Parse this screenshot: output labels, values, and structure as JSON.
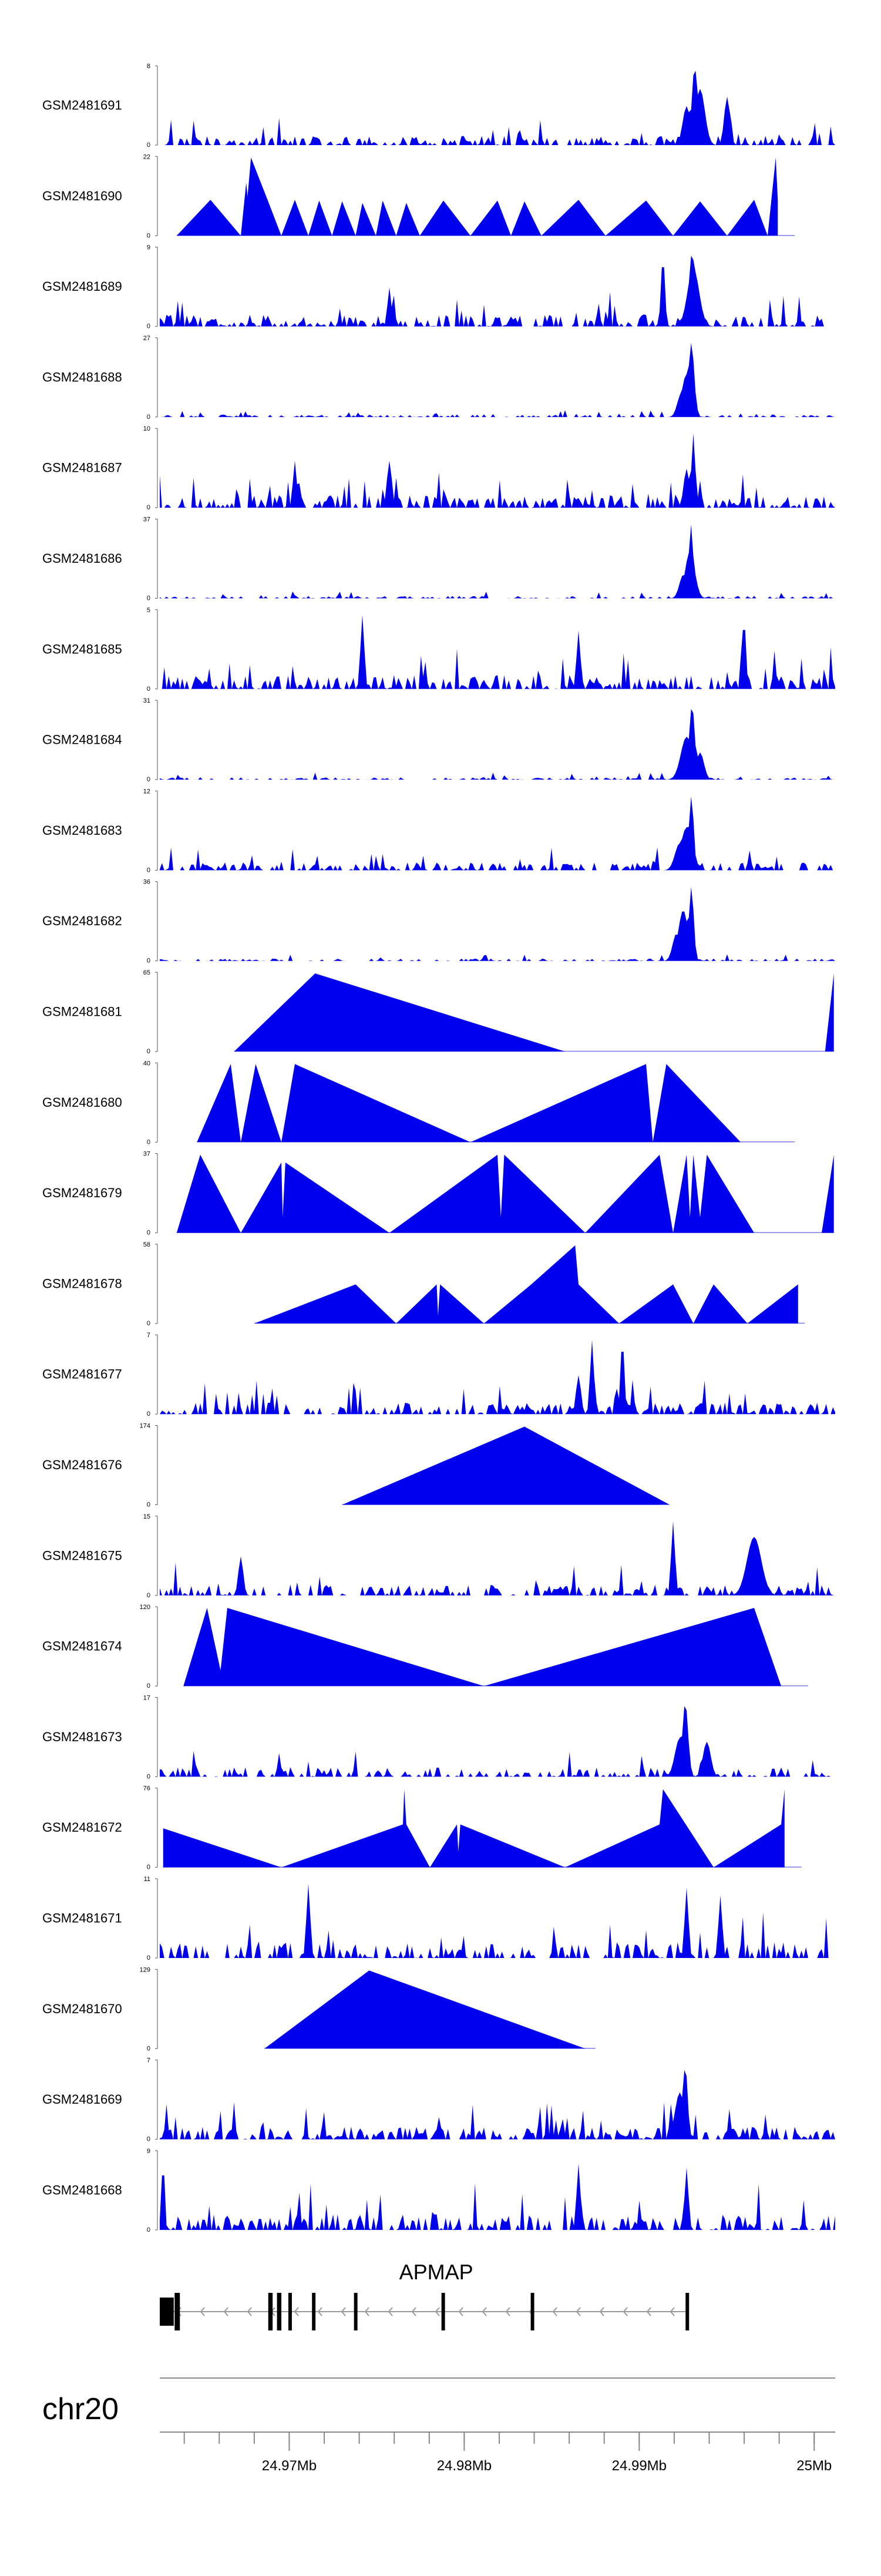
{
  "chart_data": {
    "type": "area",
    "title": "",
    "chromosome": "chr20",
    "region": [
      24.9626,
      25.0012
    ],
    "x_ticks": [
      {
        "value": 24.97,
        "label": "24.97Mb"
      },
      {
        "value": 24.98,
        "label": "24.98Mb"
      },
      {
        "value": 24.99,
        "label": "24.99Mb"
      },
      {
        "value": 25.0,
        "label": "25Mb"
      }
    ],
    "minor_tick_step": 0.002,
    "series": [
      {
        "name": "GSM2481691",
        "ymax": 8,
        "ytick_max": "8",
        "ytick_min": "0",
        "style": "noisy",
        "seed": 691,
        "density": 0.55,
        "base": 0.12,
        "peaks": [
          {
            "x": 0.792,
            "h": 1.0,
            "w": 0.006
          },
          {
            "x": 0.8,
            "h": 0.72,
            "w": 0.01
          },
          {
            "x": 0.78,
            "h": 0.5,
            "w": 0.008
          },
          {
            "x": 0.84,
            "h": 0.62,
            "w": 0.006
          }
        ]
      },
      {
        "name": "GSM2481690",
        "ymax": 22,
        "ytick_max": "22",
        "ytick_min": "0",
        "style": "sparse",
        "seed": 690,
        "ends": [
          0.025,
          0.94
        ],
        "knots": [
          [
            0.075,
            0.46
          ],
          [
            0.12,
            0.0
          ],
          [
            0.128,
            0.68
          ],
          [
            0.13,
            0.5
          ],
          [
            0.135,
            1.0
          ],
          [
            0.16,
            0.45
          ],
          [
            0.18,
            0.0
          ],
          [
            0.2,
            0.46
          ],
          [
            0.22,
            0.0
          ],
          [
            0.236,
            0.45
          ],
          [
            0.255,
            0.0
          ],
          [
            0.27,
            0.44
          ],
          [
            0.29,
            0.0
          ],
          [
            0.3,
            0.42
          ],
          [
            0.32,
            0.0
          ],
          [
            0.33,
            0.45
          ],
          [
            0.35,
            0.0
          ],
          [
            0.365,
            0.42
          ],
          [
            0.385,
            0.0
          ],
          [
            0.42,
            0.45
          ],
          [
            0.46,
            0.0
          ],
          [
            0.5,
            0.45
          ],
          [
            0.52,
            0.0
          ],
          [
            0.54,
            0.44
          ],
          [
            0.565,
            0.0
          ],
          [
            0.62,
            0.46
          ],
          [
            0.66,
            0.0
          ],
          [
            0.72,
            0.45
          ],
          [
            0.76,
            0.0
          ],
          [
            0.8,
            0.44
          ],
          [
            0.84,
            0.0
          ],
          [
            0.88,
            0.46
          ],
          [
            0.9,
            0.0
          ],
          [
            0.912,
            1.0
          ],
          [
            0.915,
            0.45
          ]
        ]
      },
      {
        "name": "GSM2481689",
        "ymax": 9,
        "ytick_max": "9",
        "ytick_min": "0",
        "style": "noisy",
        "seed": 689,
        "density": 0.6,
        "base": 0.15,
        "peaks": [
          {
            "x": 0.788,
            "h": 0.95,
            "w": 0.006
          },
          {
            "x": 0.79,
            "h": 0.75,
            "w": 0.012
          },
          {
            "x": 0.745,
            "h": 0.9,
            "w": 0.004
          },
          {
            "x": 0.34,
            "h": 0.5,
            "w": 0.004
          }
        ]
      },
      {
        "name": "GSM2481688",
        "ymax": 27,
        "ytick_max": "27",
        "ytick_min": "0",
        "style": "noisy",
        "seed": 688,
        "density": 0.45,
        "base": 0.03,
        "peaks": [
          {
            "x": 0.787,
            "h": 0.95,
            "w": 0.006
          },
          {
            "x": 0.78,
            "h": 0.55,
            "w": 0.01
          },
          {
            "x": 0.772,
            "h": 0.3,
            "w": 0.008
          }
        ]
      },
      {
        "name": "GSM2481687",
        "ymax": 10,
        "ytick_max": "10",
        "ytick_min": "0",
        "style": "noisy",
        "seed": 687,
        "density": 0.65,
        "base": 0.16,
        "peaks": [
          {
            "x": 0.79,
            "h": 0.95,
            "w": 0.004
          },
          {
            "x": 0.78,
            "h": 0.5,
            "w": 0.006
          },
          {
            "x": 0.2,
            "h": 0.6,
            "w": 0.004
          },
          {
            "x": 0.34,
            "h": 0.6,
            "w": 0.005
          }
        ]
      },
      {
        "name": "GSM2481686",
        "ymax": 37,
        "ytick_max": "37",
        "ytick_min": "0",
        "style": "noisy",
        "seed": 686,
        "density": 0.45,
        "base": 0.03,
        "peaks": [
          {
            "x": 0.787,
            "h": 0.95,
            "w": 0.004
          },
          {
            "x": 0.785,
            "h": 0.6,
            "w": 0.01
          },
          {
            "x": 0.775,
            "h": 0.3,
            "w": 0.008
          }
        ]
      },
      {
        "name": "GSM2481685",
        "ymax": 5,
        "ytick_max": "5",
        "ytick_min": "0",
        "style": "noisy",
        "seed": 685,
        "density": 0.55,
        "base": 0.18,
        "peaks": [
          {
            "x": 0.3,
            "h": 0.95,
            "w": 0.004
          },
          {
            "x": 0.865,
            "h": 0.9,
            "w": 0.004
          },
          {
            "x": 0.62,
            "h": 0.75,
            "w": 0.004
          }
        ]
      },
      {
        "name": "GSM2481684",
        "ymax": 31,
        "ytick_max": "31",
        "ytick_min": "0",
        "style": "noisy",
        "seed": 684,
        "density": 0.45,
        "base": 0.03,
        "peaks": [
          {
            "x": 0.788,
            "h": 0.95,
            "w": 0.006
          },
          {
            "x": 0.78,
            "h": 0.55,
            "w": 0.012
          },
          {
            "x": 0.8,
            "h": 0.35,
            "w": 0.008
          }
        ]
      },
      {
        "name": "GSM2481683",
        "ymax": 12,
        "ytick_max": "12",
        "ytick_min": "0",
        "style": "noisy",
        "seed": 683,
        "density": 0.55,
        "base": 0.1,
        "peaks": [
          {
            "x": 0.787,
            "h": 0.95,
            "w": 0.005
          },
          {
            "x": 0.78,
            "h": 0.55,
            "w": 0.012
          },
          {
            "x": 0.77,
            "h": 0.35,
            "w": 0.01
          }
        ]
      },
      {
        "name": "GSM2481682",
        "ymax": 36,
        "ytick_max": "36",
        "ytick_min": "0",
        "style": "noisy",
        "seed": 682,
        "density": 0.45,
        "base": 0.03,
        "peaks": [
          {
            "x": 0.787,
            "h": 0.95,
            "w": 0.005
          },
          {
            "x": 0.775,
            "h": 0.65,
            "w": 0.01
          },
          {
            "x": 0.765,
            "h": 0.35,
            "w": 0.008
          }
        ]
      },
      {
        "name": "GSM2481681",
        "ymax": 65,
        "ytick_max": "65",
        "ytick_min": "0",
        "style": "sparse",
        "seed": 681,
        "ends": [
          0.11,
          0.998
        ],
        "knots": [
          [
            0.23,
            1.0
          ],
          [
            0.6,
            0.0
          ],
          [
            0.985,
            0.0
          ],
          [
            0.998,
            1.0
          ]
        ]
      },
      {
        "name": "GSM2481680",
        "ymax": 40,
        "ytick_max": "40",
        "ytick_min": "0",
        "style": "sparse",
        "seed": 680,
        "ends": [
          0.055,
          0.94
        ],
        "knots": [
          [
            0.105,
            1.0
          ],
          [
            0.12,
            0.0
          ],
          [
            0.142,
            1.0
          ],
          [
            0.18,
            0.0
          ],
          [
            0.2,
            1.0
          ],
          [
            0.46,
            0.0
          ],
          [
            0.72,
            1.0
          ],
          [
            0.73,
            0.0
          ],
          [
            0.75,
            1.0
          ],
          [
            0.86,
            0.0
          ]
        ]
      },
      {
        "name": "GSM2481679",
        "ymax": 37,
        "ytick_max": "37",
        "ytick_min": "0",
        "style": "sparse",
        "seed": 679,
        "ends": [
          0.025,
          0.998
        ],
        "knots": [
          [
            0.06,
            1.0
          ],
          [
            0.12,
            0.0
          ],
          [
            0.18,
            0.9
          ],
          [
            0.182,
            0.2
          ],
          [
            0.186,
            0.9
          ],
          [
            0.34,
            0.0
          ],
          [
            0.5,
            1.0
          ],
          [
            0.505,
            0.2
          ],
          [
            0.51,
            1.0
          ],
          [
            0.63,
            0.0
          ],
          [
            0.74,
            1.0
          ],
          [
            0.76,
            0.0
          ],
          [
            0.78,
            1.0
          ],
          [
            0.785,
            0.2
          ],
          [
            0.79,
            1.0
          ],
          [
            0.8,
            0.2
          ],
          [
            0.81,
            1.0
          ],
          [
            0.88,
            0.0
          ],
          [
            0.98,
            0.0
          ],
          [
            0.998,
            1.0
          ]
        ]
      },
      {
        "name": "GSM2481678",
        "ymax": 58,
        "ytick_max": "58",
        "ytick_min": "0",
        "style": "sparse",
        "seed": 678,
        "ends": [
          0.14,
          0.955
        ],
        "knots": [
          [
            0.29,
            0.5
          ],
          [
            0.35,
            0.0
          ],
          [
            0.41,
            0.5
          ],
          [
            0.412,
            0.1
          ],
          [
            0.415,
            0.5
          ],
          [
            0.48,
            0.0
          ],
          [
            0.55,
            0.5
          ],
          [
            0.615,
            1.0
          ],
          [
            0.62,
            0.5
          ],
          [
            0.68,
            0.0
          ],
          [
            0.76,
            0.5
          ],
          [
            0.79,
            0.0
          ],
          [
            0.82,
            0.5
          ],
          [
            0.87,
            0.0
          ],
          [
            0.945,
            0.5
          ]
        ]
      },
      {
        "name": "GSM2481677",
        "ymax": 7,
        "ytick_max": "7",
        "ytick_min": "0",
        "style": "noisy",
        "seed": 677,
        "density": 0.6,
        "base": 0.15,
        "peaks": [
          {
            "x": 0.64,
            "h": 0.95,
            "w": 0.004
          },
          {
            "x": 0.685,
            "h": 0.95,
            "w": 0.004
          },
          {
            "x": 0.62,
            "h": 0.5,
            "w": 0.005
          }
        ]
      },
      {
        "name": "GSM2481676",
        "ymax": 174,
        "ytick_max": "174",
        "ytick_min": "0",
        "style": "sparse",
        "seed": 676,
        "ends": [
          0.27,
          0.74
        ],
        "knots": [
          [
            0.54,
            1.0
          ],
          [
            0.755,
            0.0
          ]
        ]
      },
      {
        "name": "GSM2481675",
        "ymax": 15,
        "ytick_max": "15",
        "ytick_min": "0",
        "style": "noisy",
        "seed": 675,
        "density": 0.55,
        "base": 0.14,
        "peaks": [
          {
            "x": 0.76,
            "h": 0.95,
            "w": 0.004
          },
          {
            "x": 0.88,
            "h": 0.75,
            "w": 0.015
          },
          {
            "x": 0.12,
            "h": 0.5,
            "w": 0.005
          }
        ]
      },
      {
        "name": "GSM2481674",
        "ymax": 120,
        "ytick_max": "120",
        "ytick_min": "0",
        "style": "sparse",
        "seed": 674,
        "ends": [
          0.035,
          0.96
        ],
        "knots": [
          [
            0.07,
            1.0
          ],
          [
            0.09,
            0.2
          ],
          [
            0.1,
            1.0
          ],
          [
            0.48,
            0.0
          ],
          [
            0.88,
            1.0
          ],
          [
            0.92,
            0.0
          ]
        ]
      },
      {
        "name": "GSM2481673",
        "ymax": 17,
        "ytick_max": "17",
        "ytick_min": "0",
        "style": "noisy",
        "seed": 673,
        "density": 0.55,
        "base": 0.12,
        "peaks": [
          {
            "x": 0.778,
            "h": 0.95,
            "w": 0.006
          },
          {
            "x": 0.77,
            "h": 0.5,
            "w": 0.01
          },
          {
            "x": 0.81,
            "h": 0.45,
            "w": 0.008
          }
        ]
      },
      {
        "name": "GSM2481672",
        "ymax": 76,
        "ytick_max": "76",
        "ytick_min": "0",
        "style": "sparse",
        "seed": 672,
        "ends": [
          0.005,
          0.95
        ],
        "knots": [
          [
            0.005,
            0.5
          ],
          [
            0.18,
            0.0
          ],
          [
            0.36,
            0.55
          ],
          [
            0.362,
            1.0
          ],
          [
            0.365,
            0.55
          ],
          [
            0.4,
            0.0
          ],
          [
            0.44,
            0.55
          ],
          [
            0.442,
            0.2
          ],
          [
            0.445,
            0.55
          ],
          [
            0.6,
            0.0
          ],
          [
            0.74,
            0.55
          ],
          [
            0.745,
            1.0
          ],
          [
            0.82,
            0.0
          ],
          [
            0.92,
            0.55
          ],
          [
            0.925,
            1.0
          ]
        ]
      },
      {
        "name": "GSM2481671",
        "ymax": 11,
        "ytick_max": "11",
        "ytick_min": "0",
        "style": "noisy",
        "seed": 671,
        "density": 0.45,
        "base": 0.2,
        "peaks": [
          {
            "x": 0.22,
            "h": 0.95,
            "w": 0.004
          },
          {
            "x": 0.78,
            "h": 0.9,
            "w": 0.004
          },
          {
            "x": 0.83,
            "h": 0.8,
            "w": 0.004
          }
        ]
      },
      {
        "name": "GSM2481670",
        "ymax": 129,
        "ytick_max": "129",
        "ytick_min": "0",
        "style": "sparse",
        "seed": 670,
        "ends": [
          0.155,
          0.645
        ],
        "knots": [
          [
            0.31,
            1.0
          ],
          [
            0.63,
            0.0
          ]
        ]
      },
      {
        "name": "GSM2481669",
        "ymax": 7,
        "ytick_max": "7",
        "ytick_min": "0",
        "style": "noisy",
        "seed": 669,
        "density": 0.7,
        "base": 0.16,
        "peaks": [
          {
            "x": 0.778,
            "h": 0.95,
            "w": 0.005
          },
          {
            "x": 0.77,
            "h": 0.6,
            "w": 0.01
          }
        ]
      },
      {
        "name": "GSM2481668",
        "ymax": 9,
        "ytick_max": "9",
        "ytick_min": "0",
        "style": "noisy",
        "seed": 668,
        "density": 0.55,
        "base": 0.2,
        "peaks": [
          {
            "x": 0.005,
            "h": 0.95,
            "w": 0.003
          },
          {
            "x": 0.62,
            "h": 0.85,
            "w": 0.004
          },
          {
            "x": 0.78,
            "h": 0.8,
            "w": 0.004
          }
        ]
      }
    ],
    "gene": {
      "name": "APMAP",
      "strand": "-",
      "exons": [
        [
          24.9626,
          24.9634
        ],
        [
          24.96345,
          24.96375
        ],
        [
          24.9688,
          24.96905
        ],
        [
          24.9693,
          24.96955
        ],
        [
          24.96995,
          24.97015
        ],
        [
          24.9713,
          24.9715
        ],
        [
          24.9737,
          24.9739
        ],
        [
          24.9787,
          24.9789
        ],
        [
          24.9838,
          24.984
        ],
        [
          24.99265,
          24.99285
        ]
      ],
      "start": 24.9626,
      "end": 24.99285
    },
    "colors": {
      "fill": "#0000ee",
      "baseline": "#7a7aee",
      "axis": "#555555",
      "gene": "#000000",
      "intron": "#999999"
    }
  }
}
